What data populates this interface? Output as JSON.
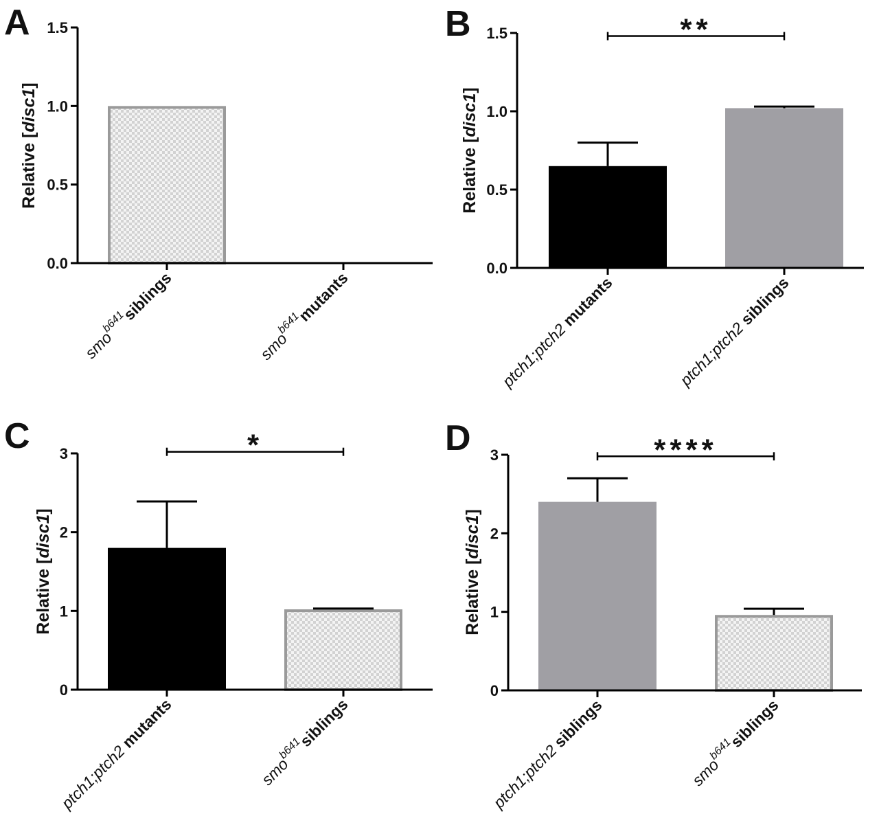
{
  "colors": {
    "black_bar": "#000000",
    "grey_bar": "#a09fa4",
    "checker_fill": "#d2d2d2",
    "checker_alt": "#f4f4f4",
    "checker_edge": "#9a9a9a",
    "axis": "#000000"
  },
  "chart_data": [
    {
      "panel": "A",
      "type": "bar",
      "ylabel_pre": "Relative [",
      "ylabel_it": "disc1",
      "ylabel_post": "]",
      "ylim": [
        0,
        1.5
      ],
      "yticks": [
        "0.0",
        "0.5",
        "1.0",
        "1.5"
      ],
      "categories": [
        {
          "parts": [
            {
              "t": "smo",
              "s": "it"
            },
            {
              "t": "b641",
              "s": "sup"
            },
            {
              "t": "  siblings",
              "s": "bold"
            }
          ]
        },
        {
          "parts": [
            {
              "t": "smo",
              "s": "it"
            },
            {
              "t": "b641",
              "s": "sup"
            },
            {
              "t": "  mutants",
              "s": "bold"
            }
          ]
        }
      ],
      "values": [
        1.0,
        0.0
      ],
      "errors": [
        0,
        0
      ],
      "fills": [
        "checker",
        "none"
      ],
      "significance": null
    },
    {
      "panel": "B",
      "type": "bar",
      "ylabel_pre": "Relative [",
      "ylabel_it": "disc1",
      "ylabel_post": "]",
      "ylim": [
        0,
        1.5
      ],
      "yticks": [
        "0.0",
        "0.5",
        "1.0",
        "1.5"
      ],
      "categories": [
        {
          "parts": [
            {
              "t": "ptch1;ptch2",
              "s": "it"
            },
            {
              "t": " mutants",
              "s": "bold"
            }
          ]
        },
        {
          "parts": [
            {
              "t": "ptch1;ptch2",
              "s": "it"
            },
            {
              "t": " siblings",
              "s": "bold"
            }
          ]
        }
      ],
      "values": [
        0.65,
        1.02
      ],
      "errors": [
        0.15,
        0.01
      ],
      "fills": [
        "black",
        "grey"
      ],
      "significance": {
        "label": "**",
        "from": 0,
        "to": 1,
        "y": 1.48
      }
    },
    {
      "panel": "C",
      "type": "bar",
      "ylabel_pre": "Relative [",
      "ylabel_it": "disc1",
      "ylabel_post": "]",
      "ylim": [
        0,
        3
      ],
      "yticks": [
        "0",
        "1",
        "2",
        "3"
      ],
      "categories": [
        {
          "parts": [
            {
              "t": "ptch1;ptch2",
              "s": "it"
            },
            {
              "t": " mutants",
              "s": "bold"
            }
          ]
        },
        {
          "parts": [
            {
              "t": "smo",
              "s": "it"
            },
            {
              "t": "b641",
              "s": "sup"
            },
            {
              "t": "  siblings",
              "s": "bold"
            }
          ]
        }
      ],
      "values": [
        1.8,
        1.02
      ],
      "errors": [
        0.59,
        0.01
      ],
      "fills": [
        "black",
        "checker"
      ],
      "significance": {
        "label": "*",
        "from": 0,
        "to": 1,
        "y": 3.02
      }
    },
    {
      "panel": "D",
      "type": "bar",
      "ylabel_pre": "Relative [",
      "ylabel_it": "disc1",
      "ylabel_post": "]",
      "ylim": [
        0,
        3
      ],
      "yticks": [
        "0",
        "1",
        "2",
        "3"
      ],
      "categories": [
        {
          "parts": [
            {
              "t": "ptch1;ptch2",
              "s": "it"
            },
            {
              "t": " siblings",
              "s": "bold"
            }
          ]
        },
        {
          "parts": [
            {
              "t": "smo",
              "s": "it"
            },
            {
              "t": "b641",
              "s": "sup"
            },
            {
              "t": "  siblings",
              "s": "bold"
            }
          ]
        }
      ],
      "values": [
        2.4,
        0.96
      ],
      "errors": [
        0.3,
        0.08
      ],
      "fills": [
        "grey",
        "checker"
      ],
      "significance": {
        "label": "****",
        "from": 0,
        "to": 1,
        "y": 2.98
      }
    }
  ]
}
